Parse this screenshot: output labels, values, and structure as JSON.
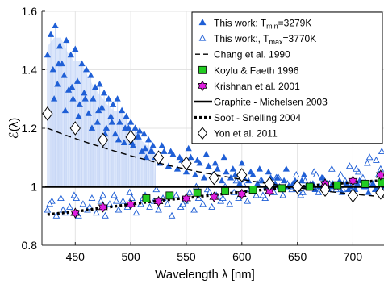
{
  "chart_data": {
    "type": "scatter",
    "xlabel": "Wavelength λ  [nm]",
    "ylabel": "ℰ(λ)",
    "xlim": [
      420,
      728
    ],
    "ylim": [
      0.8,
      1.6
    ],
    "xticks": [
      450,
      500,
      550,
      600,
      650,
      700
    ],
    "xtick_labels": [
      "450",
      "500",
      "550",
      "600",
      "650",
      "700"
    ],
    "yticks": [
      0.8,
      1.0,
      1.2,
      1.4,
      1.6
    ],
    "ytick_labels": [
      "0.8",
      "1",
      "1.2",
      "1.4",
      "1.6"
    ],
    "grid": true,
    "legend_position": "top-right",
    "colors": {
      "blue": "#1f5fd6",
      "band": "#dbe6fb",
      "green": "#22cc22",
      "magenta": "#e01ee0"
    },
    "shaded_band": {
      "x_start": 425,
      "x_end": 522,
      "y_bottom": 1.0
    },
    "series": [
      {
        "name": "This work: T",
        "name_sub": "min",
        "name_suffix": "=3279K",
        "style": "filled-triangle",
        "x": [
          425,
          428,
          430,
          432,
          434,
          436,
          438,
          440,
          442,
          444,
          446,
          448,
          450,
          452,
          454,
          456,
          458,
          460,
          462,
          464,
          466,
          468,
          470,
          472,
          474,
          476,
          478,
          480,
          482,
          484,
          486,
          488,
          490,
          492,
          494,
          496,
          498,
          500,
          502,
          504,
          506,
          508,
          510,
          512,
          514,
          516,
          518,
          520,
          522,
          526,
          530,
          534,
          538,
          542,
          546,
          550,
          554,
          558,
          562,
          566,
          570,
          574,
          578,
          582,
          586,
          590,
          594,
          598,
          602,
          606,
          610,
          614,
          618,
          622,
          626,
          630,
          634,
          638,
          642,
          646,
          650,
          654,
          658,
          662,
          666,
          670,
          674,
          678,
          682,
          686,
          690,
          694,
          698,
          702,
          706,
          710,
          714,
          718,
          722,
          726,
          431,
          435,
          441,
          447,
          453,
          459,
          465,
          471,
          477,
          483,
          489,
          495,
          501,
          507,
          513,
          519,
          528,
          536,
          544,
          552,
          560,
          568,
          576,
          584,
          592,
          600,
          608,
          616,
          624,
          632,
          640,
          648,
          656,
          664,
          672,
          680,
          688,
          696,
          704,
          712,
          720
        ],
        "y": [
          1.45,
          1.52,
          1.4,
          1.55,
          1.35,
          1.48,
          1.42,
          1.38,
          1.5,
          1.33,
          1.45,
          1.3,
          1.47,
          1.36,
          1.28,
          1.42,
          1.32,
          1.4,
          1.25,
          1.38,
          1.3,
          1.34,
          1.22,
          1.35,
          1.27,
          1.32,
          1.2,
          1.3,
          1.24,
          1.28,
          1.18,
          1.3,
          1.22,
          1.26,
          1.15,
          1.24,
          1.2,
          1.22,
          1.14,
          1.2,
          1.17,
          1.19,
          1.12,
          1.18,
          1.1,
          1.16,
          1.12,
          1.14,
          1.1,
          1.08,
          1.12,
          1.07,
          1.11,
          1.06,
          1.09,
          1.05,
          1.1,
          1.04,
          1.08,
          1.03,
          1.07,
          1.04,
          1.06,
          1.02,
          1.05,
          1.03,
          1.04,
          1.01,
          1.03,
          1.02,
          1.04,
          1.01,
          1.02,
          1.0,
          1.03,
          1.01,
          1.0,
          1.02,
          1.0,
          1.01,
          0.99,
          1.02,
          1.0,
          1.01,
          0.99,
          1.0,
          1.02,
          0.99,
          1.01,
          1.0,
          0.98,
          1.01,
          1.0,
          0.99,
          1.02,
          1.0,
          0.98,
          1.01,
          0.99,
          1.0,
          1.3,
          1.42,
          1.26,
          1.34,
          1.24,
          1.3,
          1.2,
          1.26,
          1.18,
          1.22,
          1.16,
          1.2,
          1.15,
          1.17,
          1.13,
          1.12,
          1.14,
          1.12,
          1.1,
          1.13,
          1.09,
          1.11,
          1.08,
          1.1,
          1.06,
          1.08,
          1.05,
          1.06,
          1.05,
          1.03,
          1.06,
          1.02,
          1.04,
          1.01,
          1.03,
          1.0,
          1.02,
          0.99,
          1.01,
          1.0,
          0.99
        ]
      },
      {
        "name": "This work:, T",
        "name_sub": "max",
        "name_suffix": "=3770K",
        "style": "open-triangle",
        "x": [
          425,
          429,
          433,
          437,
          441,
          445,
          449,
          453,
          457,
          461,
          465,
          469,
          473,
          477,
          481,
          485,
          489,
          493,
          497,
          501,
          505,
          509,
          513,
          517,
          521,
          525,
          529,
          533,
          537,
          541,
          545,
          549,
          553,
          557,
          561,
          565,
          569,
          573,
          577,
          581,
          585,
          589,
          593,
          597,
          601,
          605,
          609,
          613,
          617,
          621,
          625,
          629,
          633,
          637,
          641,
          645,
          649,
          653,
          657,
          661,
          665,
          669,
          673,
          677,
          681,
          685,
          689,
          693,
          697,
          701,
          705,
          709,
          713,
          717,
          721,
          725,
          427,
          439,
          451,
          463,
          475,
          487,
          499,
          511,
          523,
          535,
          547,
          559,
          571,
          583,
          595,
          607,
          619,
          631,
          643,
          655,
          667,
          679,
          691,
          703,
          715,
          723,
          726
        ],
        "y": [
          0.92,
          0.95,
          0.9,
          0.96,
          0.91,
          0.93,
          0.97,
          0.9,
          0.94,
          0.92,
          0.96,
          0.91,
          0.95,
          0.9,
          0.94,
          0.97,
          0.92,
          0.95,
          0.93,
          0.96,
          0.91,
          0.94,
          0.97,
          0.93,
          0.95,
          0.92,
          0.96,
          0.94,
          0.9,
          0.97,
          0.93,
          0.95,
          0.98,
          0.92,
          0.96,
          0.94,
          0.99,
          0.93,
          0.97,
          0.95,
          1.0,
          0.94,
          0.98,
          0.96,
          1.01,
          0.95,
          0.99,
          0.97,
          1.02,
          0.96,
          1.0,
          0.98,
          1.03,
          0.97,
          1.01,
          0.99,
          1.04,
          0.97,
          1.02,
          1.0,
          1.05,
          0.98,
          1.03,
          1.01,
          1.06,
          0.99,
          1.04,
          1.02,
          1.07,
          1.0,
          1.05,
          1.03,
          1.08,
          1.01,
          1.09,
          1.06,
          0.94,
          0.92,
          0.96,
          0.93,
          0.97,
          0.95,
          0.98,
          0.96,
          0.99,
          0.97,
          0.94,
          1.0,
          0.98,
          0.96,
          1.02,
          0.99,
          0.97,
          1.03,
          1.0,
          0.98,
          1.04,
          1.01,
          0.99,
          1.06,
          1.1,
          1.04,
          1.12
        ]
      },
      {
        "name": "Chang et al. 1990",
        "style": "dashed-line",
        "x": [
          425,
          440,
          460,
          480,
          500,
          520,
          540,
          560,
          580,
          600,
          620,
          640,
          660,
          680,
          700,
          720,
          728
        ],
        "y": [
          1.2,
          1.178,
          1.152,
          1.128,
          1.106,
          1.086,
          1.068,
          1.052,
          1.038,
          1.025,
          1.013,
          1.002,
          0.992,
          0.983,
          0.975,
          0.968,
          0.965
        ]
      },
      {
        "name": "Koylu & Faeth 1996",
        "style": "green-square",
        "x": [
          514,
          535,
          560,
          585,
          610,
          636,
          661,
          686,
          711,
          726
        ],
        "y": [
          0.96,
          0.97,
          0.98,
          0.985,
          0.99,
          0.995,
          1.0,
          1.005,
          1.01,
          1.015
        ]
      },
      {
        "name": "Krishnan et al. 2001",
        "style": "magenta-hexagram",
        "x": [
          450,
          475,
          500,
          525,
          550,
          575,
          600,
          625,
          650,
          675,
          700,
          725
        ],
        "y": [
          0.91,
          0.93,
          0.94,
          0.95,
          0.96,
          0.965,
          0.975,
          0.985,
          0.995,
          1.01,
          1.02,
          1.04
        ]
      },
      {
        "name": "Graphite - Michelsen 2003",
        "style": "solid-line",
        "x": [
          420,
          728
        ],
        "y": [
          1.0,
          1.0
        ]
      },
      {
        "name": "Soot - Snelling 2004",
        "style": "dotted-line",
        "x": [
          425,
          450,
          475,
          500,
          525,
          550,
          575,
          600,
          625,
          650,
          675,
          700,
          728
        ],
        "y": [
          0.905,
          0.915,
          0.928,
          0.94,
          0.952,
          0.962,
          0.972,
          0.982,
          0.992,
          1.0,
          1.008,
          1.015,
          1.022
        ]
      },
      {
        "name": "Yon et al. 2011",
        "style": "open-diamond",
        "x": [
          425,
          450,
          475,
          500,
          525,
          550,
          575,
          600,
          625,
          650,
          675,
          700,
          725
        ],
        "y": [
          1.25,
          1.2,
          1.16,
          1.17,
          1.1,
          1.08,
          1.03,
          1.04,
          1.01,
          1.0,
          0.99,
          0.97,
          0.98
        ]
      }
    ]
  }
}
